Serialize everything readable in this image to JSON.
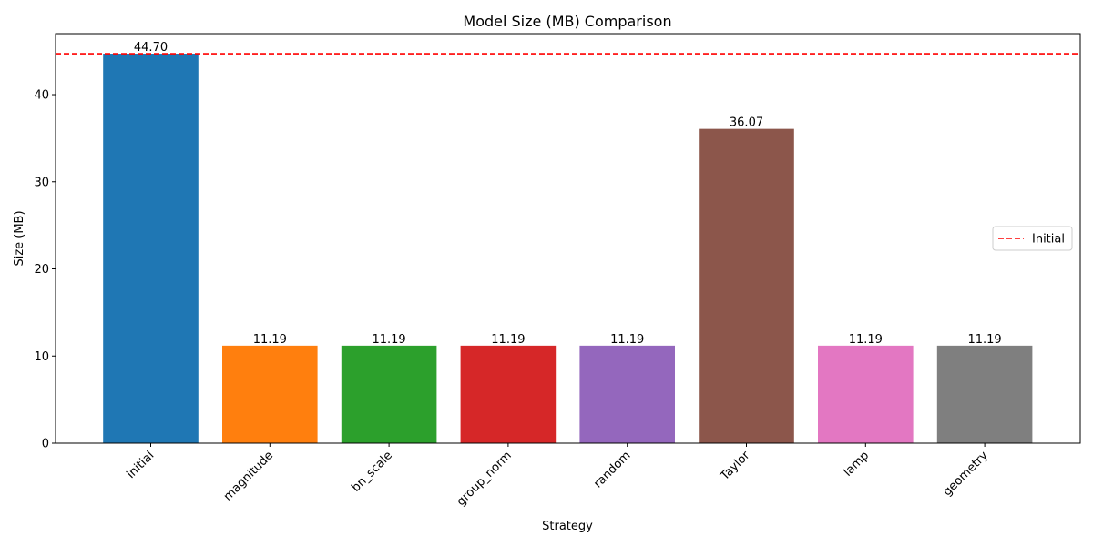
{
  "chart_data": {
    "type": "bar",
    "title": "Model Size (MB) Comparison",
    "xlabel": "Strategy",
    "ylabel": "Size (MB)",
    "categories": [
      "initial",
      "magnitude",
      "bn_scale",
      "group_norm",
      "random",
      "Taylor",
      "lamp",
      "geometry"
    ],
    "values": [
      44.7,
      11.19,
      11.19,
      11.19,
      11.19,
      36.07,
      11.19,
      11.19
    ],
    "value_labels": [
      "44.70",
      "11.19",
      "11.19",
      "11.19",
      "11.19",
      "36.07",
      "11.19",
      "11.19"
    ],
    "colors": [
      "#1f77b4",
      "#ff7f0e",
      "#2ca02c",
      "#d62728",
      "#9467bd",
      "#8c564b",
      "#e377c2",
      "#7f7f7f"
    ],
    "ylim": [
      0,
      47
    ],
    "yticks": [
      0,
      10,
      20,
      30,
      40
    ],
    "reference_line": {
      "name": "Initial",
      "value": 44.7,
      "color": "#ff0000",
      "style": "dashed"
    },
    "legend": {
      "placement": "center-right",
      "entries": [
        "Initial"
      ]
    },
    "grid": false
  }
}
